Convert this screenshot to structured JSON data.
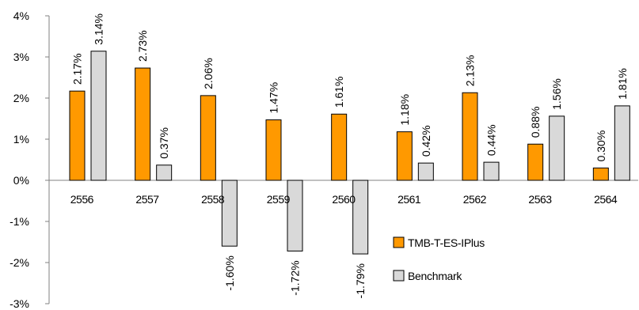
{
  "chart_data": {
    "type": "bar",
    "categories": [
      "2556",
      "2557",
      "2558",
      "2559",
      "2560",
      "2561",
      "2562",
      "2563",
      "2564"
    ],
    "series": [
      {
        "name": "TMB-T-ES-IPlus",
        "values": [
          2.17,
          2.73,
          2.06,
          1.47,
          1.61,
          1.18,
          2.13,
          0.88,
          0.3
        ],
        "labels": [
          "2.17%",
          "2.73%",
          "2.06%",
          "1.47%",
          "1.61%",
          "1.18%",
          "2.13%",
          "0.88%",
          "0.30%"
        ],
        "color": "#ff9900"
      },
      {
        "name": "Benchmark",
        "values": [
          3.14,
          0.37,
          -1.6,
          -1.72,
          -1.79,
          0.42,
          0.44,
          1.56,
          1.81
        ],
        "labels": [
          "3.14%",
          "0.37%",
          "-1.60%",
          "-1.72%",
          "-1.79%",
          "0.42%",
          "0.44%",
          "1.56%",
          "1.81%"
        ],
        "color": "#d9d9d9"
      }
    ],
    "ylim": [
      -3,
      4
    ],
    "yticks": [
      4,
      3,
      2,
      1,
      0,
      -1,
      -2,
      -3
    ],
    "ytick_labels": [
      "4%",
      "3%",
      "2%",
      "1%",
      "0%",
      "-1%",
      "-2%",
      "-3%"
    ],
    "grid": false,
    "legend_position": "bottom-right-inside"
  }
}
